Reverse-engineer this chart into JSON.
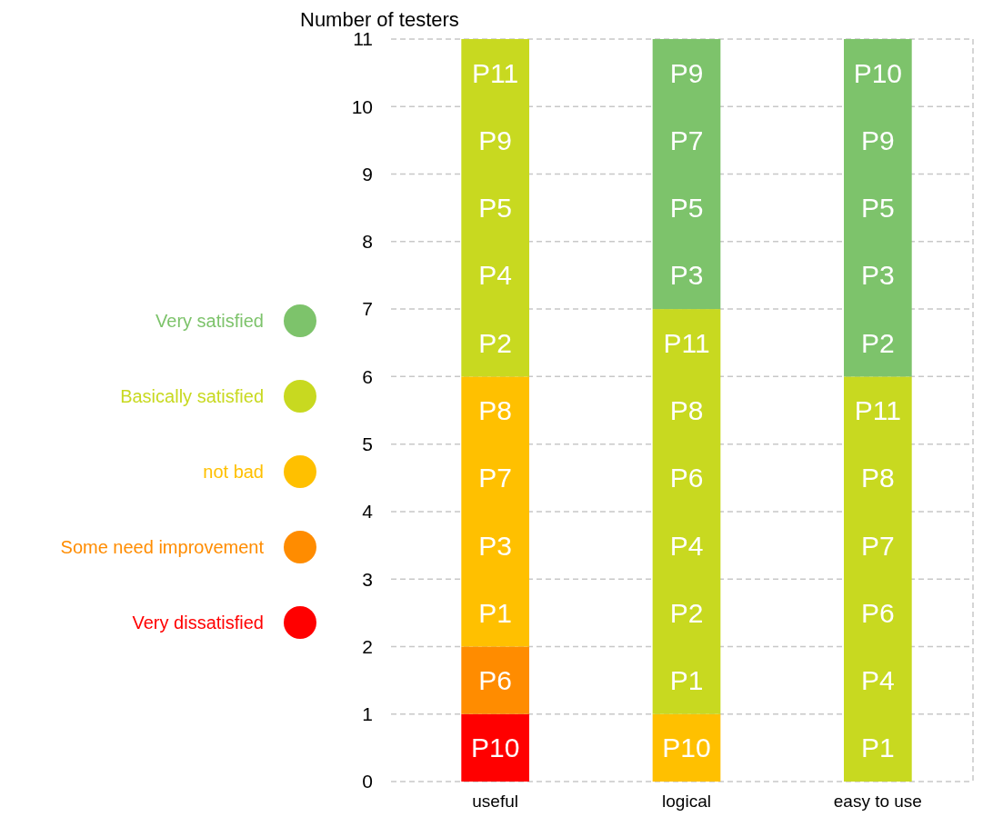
{
  "chart_data": {
    "type": "bar",
    "stacked": true,
    "ylabel": "Number of testers",
    "categories": [
      "useful",
      "logical",
      "easy to use"
    ],
    "series": [
      {
        "name": "Very dissatisfied",
        "color": "#ff0000",
        "values": [
          1,
          0,
          0
        ]
      },
      {
        "name": "Some need improvement",
        "color": "#ff8c00",
        "values": [
          1,
          0,
          0
        ]
      },
      {
        "name": "not bad",
        "color": "#ffc000",
        "values": [
          4,
          1,
          0
        ]
      },
      {
        "name": "Basically satisfied",
        "color": "#c8d920",
        "values": [
          5,
          6,
          6
        ]
      },
      {
        "name": "Very satisfied",
        "color": "#7dc36b",
        "values": [
          0,
          4,
          5
        ]
      }
    ],
    "ylim": [
      0,
      11
    ],
    "yticks": [
      0,
      1,
      2,
      3,
      4,
      5,
      6,
      7,
      8,
      9,
      10,
      11
    ],
    "grid": "y",
    "legend": "left",
    "annotations": [
      "P10",
      "P6",
      "P1",
      "P3",
      "P7",
      "P8",
      "P2",
      "P4",
      "P5",
      "P9",
      "P11",
      "P10",
      "P1",
      "P2",
      "P4",
      "P6",
      "P8",
      "P11",
      "P3",
      "P5",
      "P7",
      "P9",
      "P1",
      "P4",
      "P6",
      "P7",
      "P8",
      "P11",
      "P2",
      "P3",
      "P5",
      "P9",
      "P10"
    ]
  }
}
